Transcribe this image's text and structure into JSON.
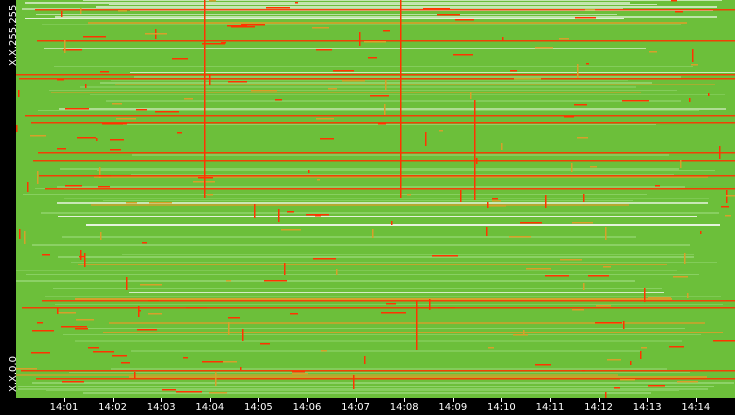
{
  "chart_data": {
    "type": "heatmap",
    "y_labels": [
      "X.X.255.255",
      "X.X.0.0"
    ],
    "x_ticks": [
      "14:01",
      "14:02",
      "14:03",
      "14:04",
      "14:05",
      "14:06",
      "14:07",
      "14:08",
      "14:09",
      "14:10",
      "14:11",
      "14:12",
      "14:13",
      "14:14"
    ],
    "colors": {
      "low": "#e8f4e0",
      "light": "#8fd36a",
      "mid": "#6cbf3a",
      "warm": "#d7a02a",
      "high": "#ff3300"
    }
  }
}
